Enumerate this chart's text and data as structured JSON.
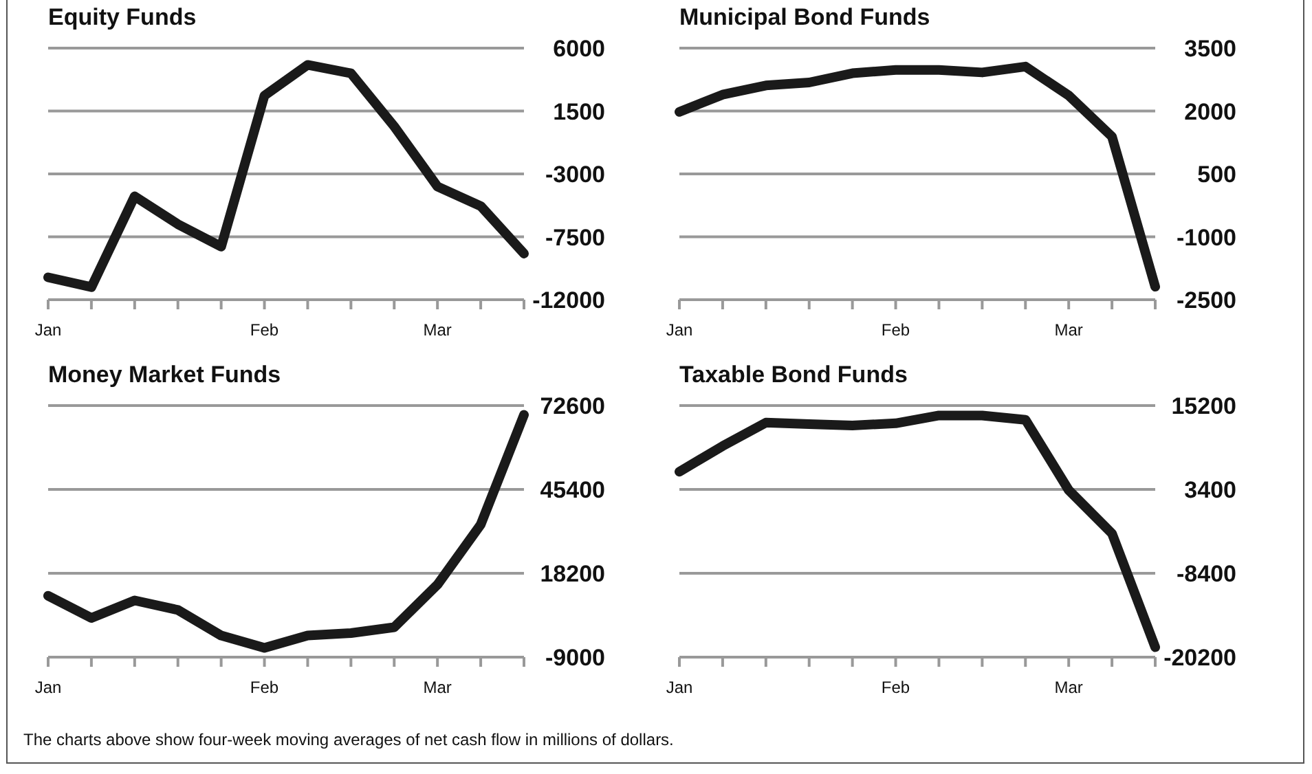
{
  "chart_data": [
    {
      "type": "line",
      "title": "Equity Funds",
      "categories": [
        "Jan",
        null,
        null,
        null,
        null,
        "Feb",
        null,
        null,
        null,
        "Mar",
        null,
        null
      ],
      "series": [
        {
          "color": "#1a1a1a",
          "values": [
            -10400,
            -11100,
            -4600,
            -6600,
            -8200,
            2600,
            4800,
            4200,
            400,
            -3900,
            -5300,
            -8700
          ]
        }
      ],
      "ylim": [
        -12000,
        6000
      ],
      "yticks": [
        -12000,
        -7500,
        -3000,
        1500,
        6000
      ],
      "grid": "y",
      "annotations": [
        "The charts above show four-week moving averages of net cash flow in millions of dollars."
      ]
    },
    {
      "type": "line",
      "title": "Municipal Bond Funds",
      "categories": [
        "Jan",
        null,
        null,
        null,
        null,
        "Feb",
        null,
        null,
        null,
        "Mar",
        null,
        null
      ],
      "series": [
        {
          "color": "#1a1a1a",
          "values": [
            1980,
            2390,
            2610,
            2680,
            2900,
            2980,
            2980,
            2920,
            3060,
            2370,
            1390,
            -2190
          ]
        }
      ],
      "ylim": [
        -2500,
        3500
      ],
      "yticks": [
        -2500,
        -1000,
        500,
        2000,
        3500
      ],
      "grid": "y"
    },
    {
      "type": "line",
      "title": "Money Market Funds",
      "categories": [
        "Jan",
        null,
        null,
        null,
        null,
        "Feb",
        null,
        null,
        null,
        "Mar",
        null,
        null
      ],
      "series": [
        {
          "color": "#1a1a1a",
          "values": [
            10900,
            3700,
            9400,
            6300,
            -2000,
            -6000,
            -2000,
            -1200,
            700,
            14500,
            34000,
            69600
          ]
        }
      ],
      "ylim": [
        -9000,
        72600
      ],
      "yticks": [
        -9000,
        18200,
        45400,
        72600
      ],
      "grid": "y"
    },
    {
      "type": "line",
      "title": "Taxable Bond Funds",
      "categories": [
        "Jan",
        null,
        null,
        null,
        null,
        "Feb",
        null,
        null,
        null,
        "Mar",
        null,
        null
      ],
      "series": [
        {
          "color": "#1a1a1a",
          "values": [
            5900,
            9500,
            12800,
            12600,
            12400,
            12700,
            13800,
            13800,
            13200,
            3300,
            -2800,
            -18800
          ]
        }
      ],
      "ylim": [
        -20200,
        15200
      ],
      "yticks": [
        -20200,
        -8400,
        3400,
        15200
      ],
      "grid": "y"
    }
  ]
}
